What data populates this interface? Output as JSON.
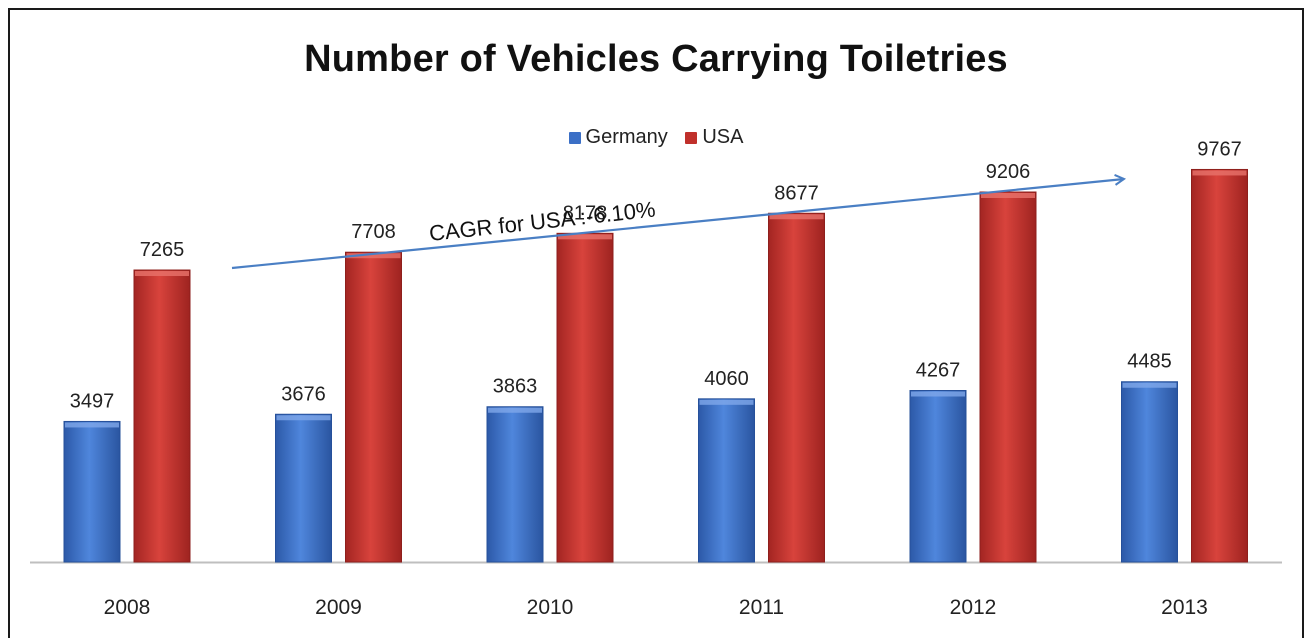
{
  "chart_data": {
    "type": "bar",
    "title": "Number of Vehicles Carrying Toiletries",
    "categories": [
      "2008",
      "2009",
      "2010",
      "2011",
      "2012",
      "2013"
    ],
    "series": [
      {
        "name": "Germany",
        "values": [
          3497,
          3676,
          3863,
          4060,
          4267,
          4485
        ],
        "color": "#3b6fc6"
      },
      {
        "name": "USA",
        "values": [
          7265,
          7708,
          8178,
          8677,
          9206,
          9767
        ],
        "color": "#c0302b"
      }
    ],
    "data_labels": true,
    "legend": "top-center",
    "grid": false,
    "ylim": [
      0,
      10500
    ],
    "annotation": {
      "text": "CAGR for USA :-6.10%",
      "type": "arrow",
      "color": "#4a7fc4"
    }
  }
}
